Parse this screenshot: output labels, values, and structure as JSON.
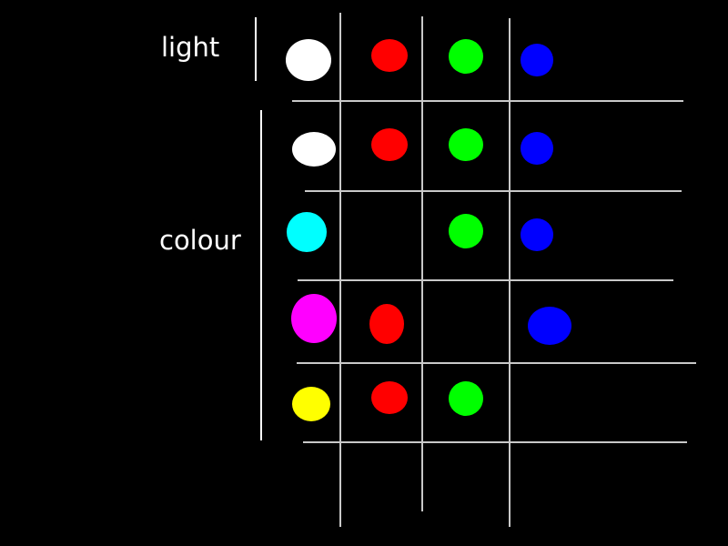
{
  "labels": {
    "light": "light",
    "colour": "colour"
  },
  "colors": {
    "background": "#000000",
    "grid_line": "#c8c8c8",
    "bracket": "#ffffff",
    "white": "#ffffff",
    "red": "#ff0000",
    "green": "#00ff00",
    "blue": "#0000ff",
    "cyan": "#00ffff",
    "magenta": "#ff00ff",
    "yellow": "#ffff00"
  },
  "rows": [
    {
      "group": "light",
      "dots": [
        "white",
        "red",
        "green",
        "blue"
      ]
    },
    {
      "group": "colour",
      "dots": [
        "white",
        "red",
        "green",
        "blue"
      ]
    },
    {
      "group": "colour",
      "dots": [
        "cyan",
        null,
        "green",
        "blue"
      ]
    },
    {
      "group": "colour",
      "dots": [
        "magenta",
        "red",
        null,
        "blue"
      ]
    },
    {
      "group": "colour",
      "dots": [
        "yellow",
        "red",
        "green",
        null
      ]
    }
  ]
}
